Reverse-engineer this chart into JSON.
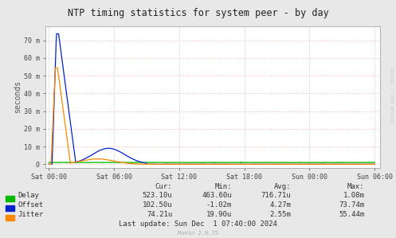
{
  "title": "NTP timing statistics for system peer - by day",
  "ylabel": "seconds",
  "bg_color": "#e8e8e8",
  "plot_bg_color": "#ffffff",
  "ytick_labels": [
    "0",
    "10 m",
    "20 m",
    "30 m",
    "40 m",
    "50 m",
    "60 m",
    "70 m"
  ],
  "ytick_values": [
    0,
    0.01,
    0.02,
    0.03,
    0.04,
    0.05,
    0.06,
    0.07
  ],
  "ylim": [
    -0.002,
    0.078
  ],
  "xtick_labels": [
    "Sat 00:00",
    "Sat 06:00",
    "Sat 12:00",
    "Sat 18:00",
    "Sun 00:00",
    "Sun 06:00"
  ],
  "delay_color": "#00bb00",
  "offset_color": "#0022cc",
  "jitter_color": "#ff8800",
  "watermark": "RRDTOOL / TOBI OETIKER",
  "munin_text": "Munin 2.0.75",
  "legend_items": [
    {
      "label": "Delay",
      "cur": "523.10u",
      "min": "463.60u",
      "avg": "716.71u",
      "max": "1.08m"
    },
    {
      "label": "Offset",
      "cur": "102.50u",
      "min": "-1.02m",
      "avg": "4.27m",
      "max": "73.74m"
    },
    {
      "label": "Jitter",
      "cur": "74.21u",
      "min": "19.90u",
      "avg": "2.55m",
      "max": "55.44m"
    }
  ],
  "last_update": "Last update: Sun Dec  1 07:40:00 2024",
  "col_headers": [
    "Cur:",
    "Min:",
    "Avg:",
    "Max:"
  ]
}
